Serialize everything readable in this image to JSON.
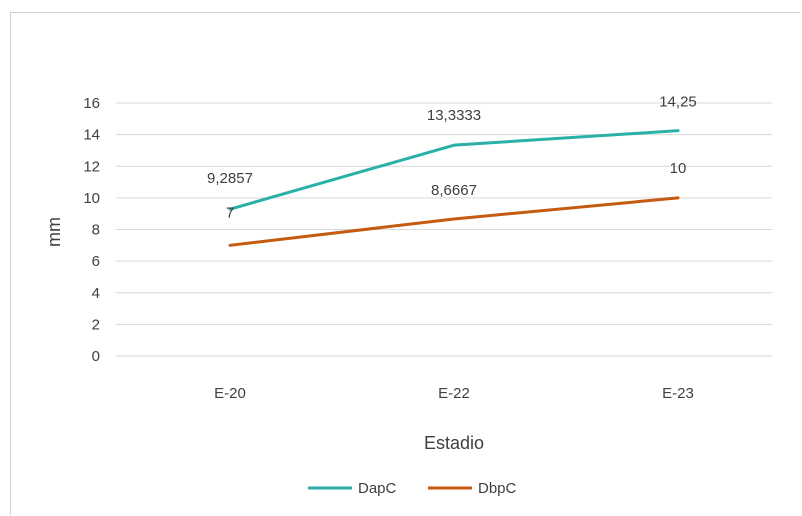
{
  "chart_data": {
    "type": "line",
    "title": "",
    "xlabel": "Estadio",
    "ylabel": "mm",
    "categories": [
      "E-20",
      "E-22",
      "E-23"
    ],
    "ylim": [
      0,
      16
    ],
    "yticks": [
      0,
      2,
      4,
      6,
      8,
      10,
      12,
      14,
      16
    ],
    "ytick_labels": [
      "0",
      "2",
      "4",
      "6",
      "8",
      "10",
      "12",
      "14",
      "16"
    ],
    "grid": true,
    "legend_position": "bottom",
    "series": [
      {
        "name": "DapC",
        "color": "#2ab0a8",
        "values": [
          9.2857,
          13.3333,
          14.25
        ],
        "labels": [
          "9,2857",
          "13,3333",
          "14,25"
        ]
      },
      {
        "name": "DbpC",
        "color": "#c55a11",
        "values": [
          7,
          8.6667,
          10
        ],
        "labels": [
          "7",
          "8,6667",
          "10"
        ]
      }
    ]
  }
}
